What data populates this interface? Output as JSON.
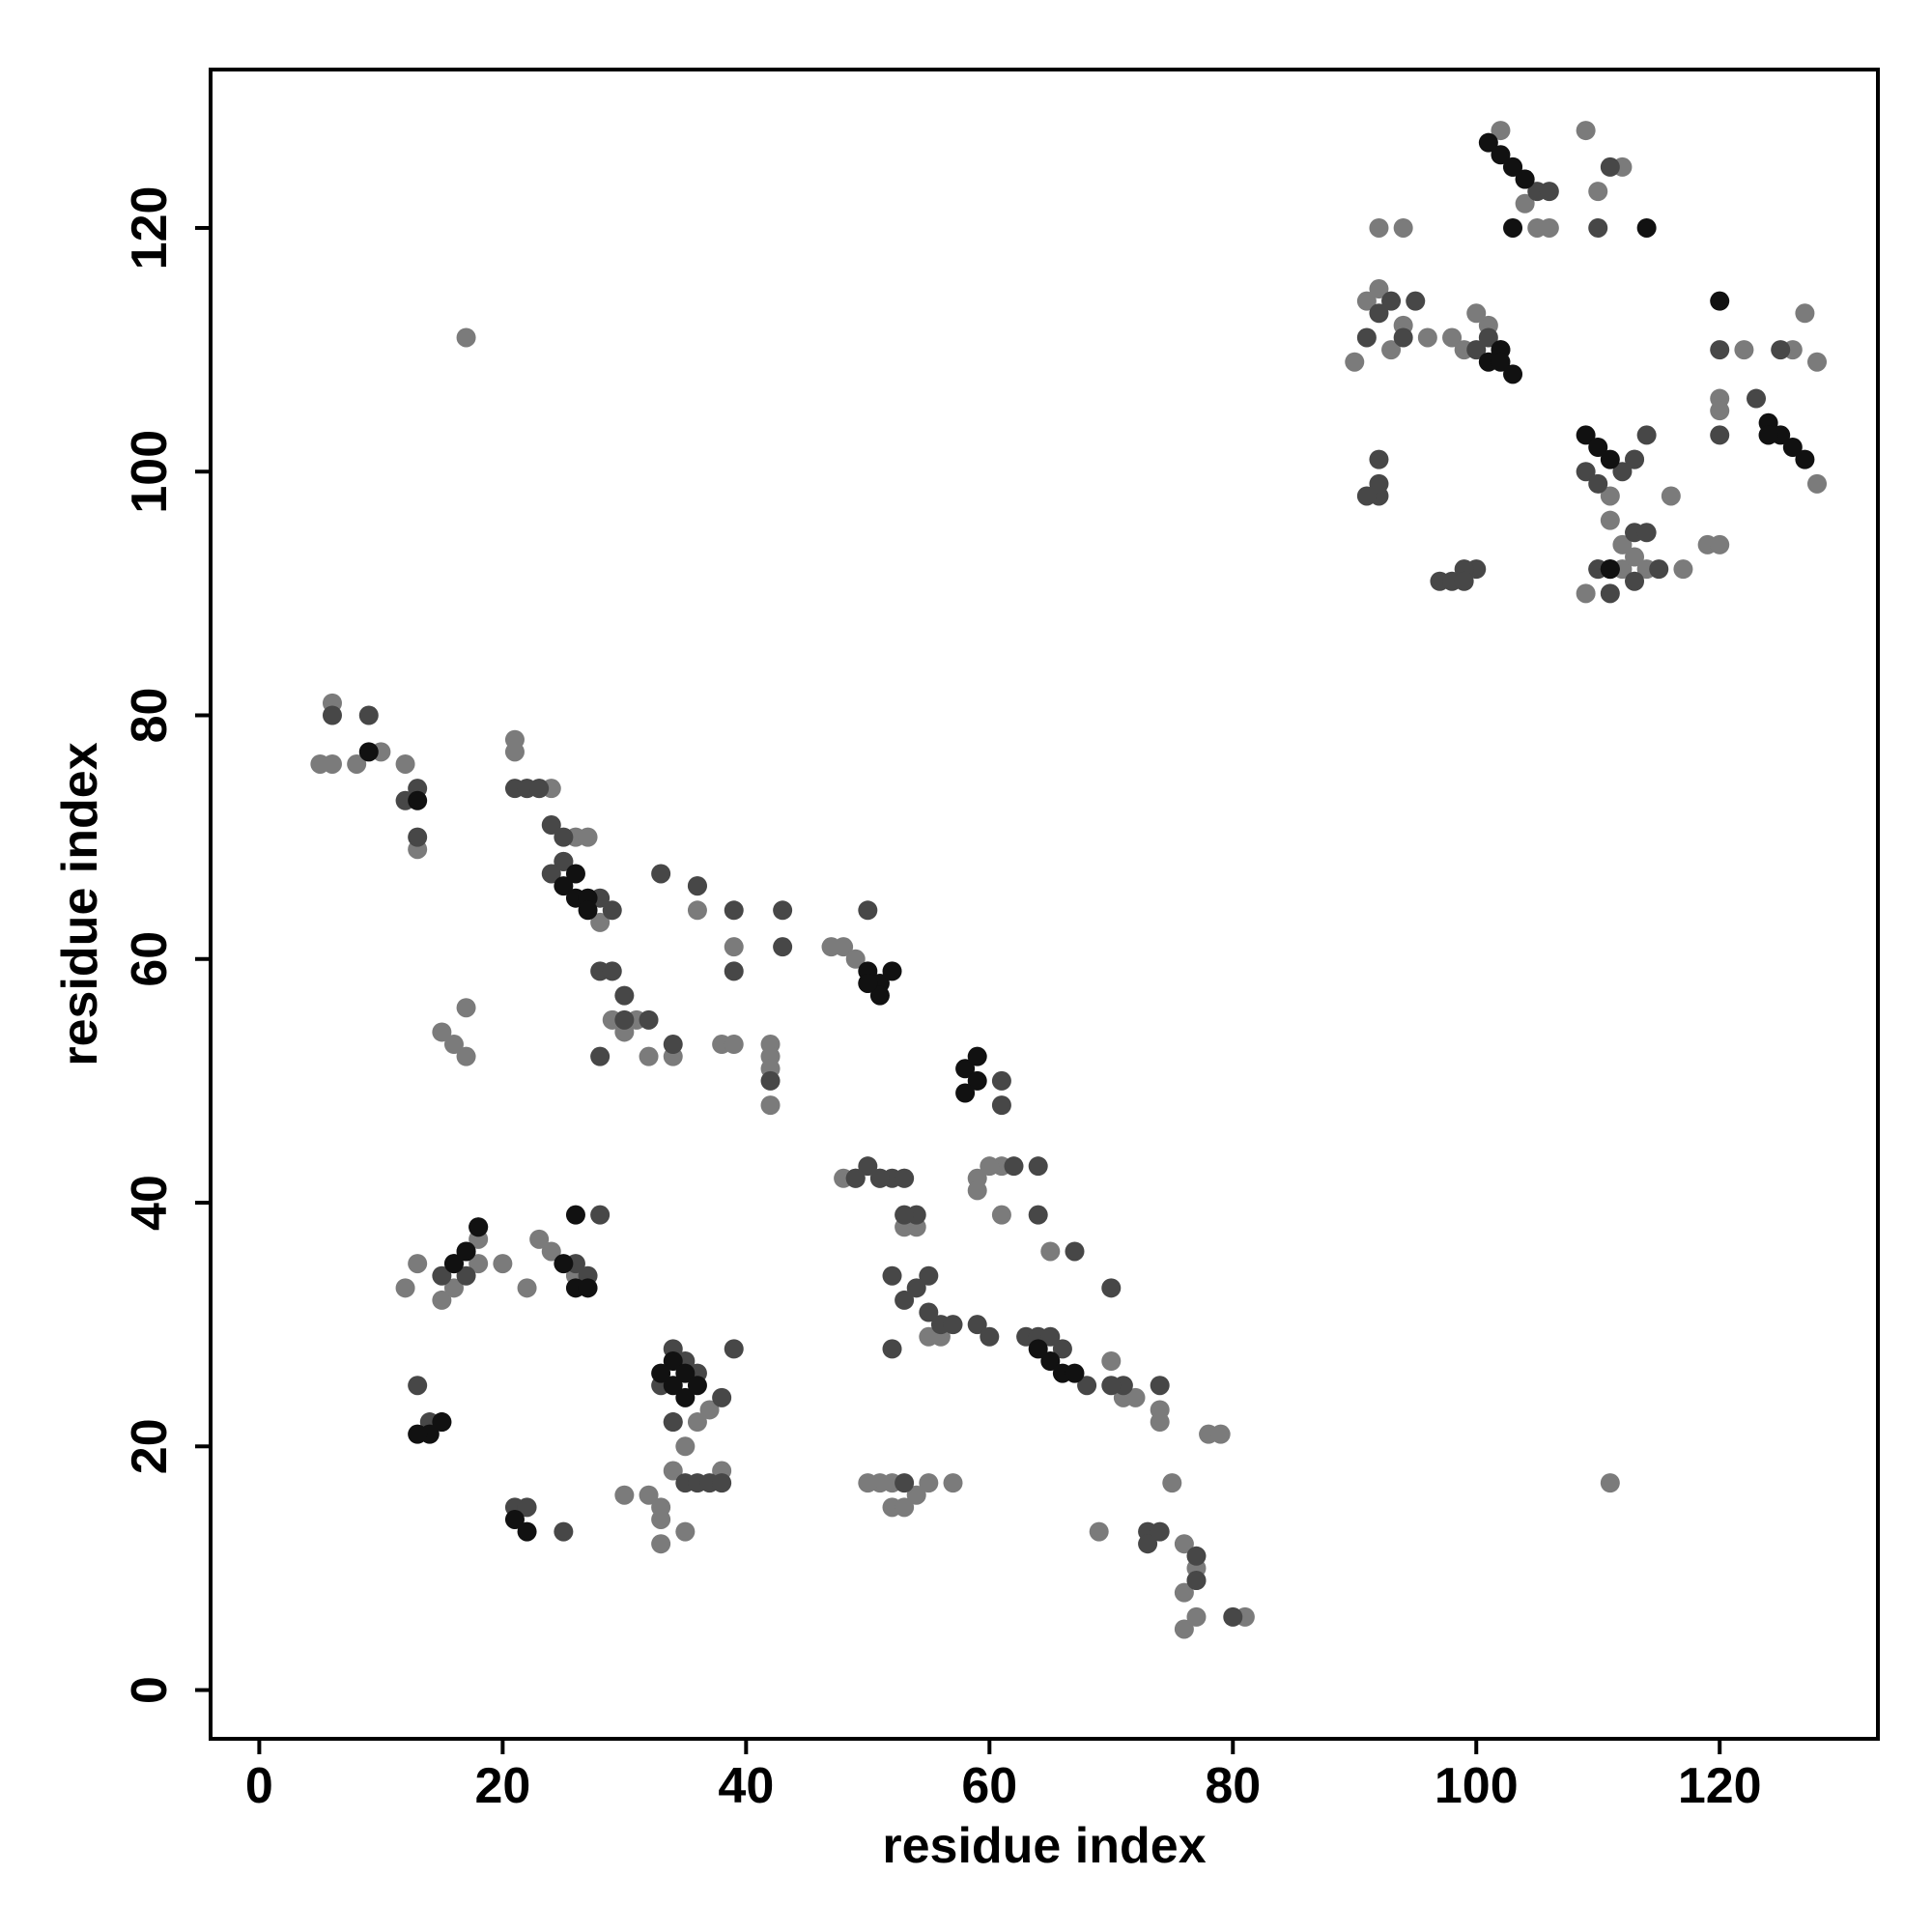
{
  "chart_data": {
    "type": "scatter",
    "title": "",
    "xlabel": "residue index",
    "ylabel": "residue index",
    "xlim": [
      -4,
      133
    ],
    "ylim": [
      -4,
      133
    ],
    "xticks": [
      0,
      20,
      40,
      60,
      80,
      100,
      120
    ],
    "yticks": [
      0,
      20,
      40,
      60,
      80,
      100,
      120
    ],
    "grid": false,
    "legend": "none",
    "point_colors": {
      "dark": "#111111",
      "mid": "#474747",
      "light": "#7b7b7b"
    },
    "series": [
      {
        "shade": "dark",
        "x": [
          9,
          13,
          25,
          26,
          26,
          27,
          27,
          34,
          34,
          35,
          35,
          33,
          36,
          14,
          15,
          13,
          21,
          22,
          16,
          18,
          17,
          25,
          26,
          26,
          27,
          50,
          51,
          51,
          52,
          50,
          58,
          59,
          59,
          58,
          65,
          66,
          67,
          64,
          101,
          102,
          103,
          104,
          102,
          101,
          102,
          103,
          109,
          110,
          111,
          111,
          124,
          125,
          126,
          127,
          124,
          103,
          111,
          114,
          120
        ],
        "y": [
          77,
          73,
          66,
          65,
          67,
          65,
          64,
          27,
          25,
          26,
          24,
          26,
          25,
          21,
          22,
          21,
          14,
          13,
          35,
          38,
          36,
          35,
          33,
          39,
          33,
          59,
          58,
          57,
          59,
          58,
          51,
          50,
          52,
          49,
          27,
          26,
          26,
          28,
          127,
          126,
          125,
          124,
          110,
          109,
          109,
          108,
          103,
          102,
          101,
          92,
          104,
          103,
          102,
          101,
          103,
          120,
          92,
          120,
          114
        ]
      },
      {
        "shade": "mid",
        "x": [
          6,
          9,
          13,
          12,
          13,
          21,
          22,
          23,
          24,
          25,
          25,
          24,
          28,
          29,
          28,
          29,
          30,
          30,
          32,
          34,
          28,
          33,
          36,
          39,
          39,
          43,
          43,
          42,
          50,
          52,
          51,
          49,
          53,
          54,
          53,
          55,
          56,
          57,
          59,
          60,
          61,
          61,
          64,
          64,
          62,
          67,
          70,
          71,
          73,
          74,
          73,
          77,
          77,
          80,
          63,
          64,
          65,
          66,
          68,
          70,
          74,
          34,
          35,
          36,
          38,
          33,
          34,
          35,
          36,
          37,
          13,
          14,
          15,
          17,
          15,
          16,
          17,
          18,
          21,
          22,
          25,
          26,
          27,
          28,
          39,
          38,
          50,
          49,
          51,
          52,
          53,
          54,
          55,
          52,
          53,
          91,
          92,
          93,
          94,
          95,
          92,
          92,
          100,
          101,
          102,
          100,
          99,
          97,
          98,
          99,
          91,
          92,
          103,
          104,
          105,
          106,
          110,
          111,
          113,
          114,
          109,
          110,
          112,
          113,
          114,
          115,
          120,
          120,
          123,
          124,
          125,
          110,
          111,
          113
        ],
        "y": [
          80,
          80,
          74,
          73,
          70,
          74,
          74,
          74,
          71,
          70,
          68,
          67,
          65,
          64,
          59,
          59,
          57,
          55,
          55,
          53,
          52,
          67,
          66,
          64,
          59,
          64,
          61,
          50,
          64,
          42,
          42,
          42,
          42,
          39,
          39,
          34,
          30,
          30,
          30,
          29,
          50,
          48,
          43,
          39,
          43,
          36,
          33,
          25,
          13,
          13,
          12,
          11,
          9,
          6,
          29,
          29,
          29,
          28,
          25,
          25,
          25,
          28,
          27,
          26,
          24,
          25,
          22,
          17,
          17,
          17,
          25,
          22,
          22,
          36,
          34,
          35,
          34,
          38,
          15,
          15,
          13,
          35,
          34,
          39,
          28,
          17,
          43,
          42,
          42,
          34,
          32,
          33,
          31,
          28,
          17,
          111,
          113,
          114,
          111,
          114,
          101,
          98,
          110,
          111,
          110,
          92,
          92,
          91,
          91,
          91,
          98,
          99,
          125,
          124,
          123,
          123,
          120,
          125,
          101,
          103,
          100,
          99,
          100,
          95,
          95,
          92,
          110,
          103,
          106,
          103,
          110,
          92,
          90,
          91
        ]
      },
      {
        "shade": "light",
        "x": [
          5,
          6,
          6,
          8,
          10,
          12,
          13,
          17,
          21,
          21,
          22,
          23,
          24,
          25,
          26,
          27,
          28,
          29,
          30,
          31,
          32,
          34,
          36,
          36,
          38,
          39,
          39,
          42,
          42,
          42,
          42,
          47,
          48,
          49,
          50,
          48,
          53,
          54,
          55,
          56,
          57,
          59,
          59,
          61,
          60,
          61,
          65,
          69,
          70,
          71,
          72,
          74,
          74,
          76,
          76,
          76,
          77,
          77,
          78,
          81,
          79,
          77,
          75,
          15,
          16,
          17,
          17,
          18,
          12,
          13,
          15,
          16,
          18,
          20,
          23,
          24,
          22,
          26,
          32,
          33,
          33,
          34,
          35,
          35,
          36,
          37,
          38,
          34,
          30,
          33,
          53,
          52,
          54,
          52,
          53,
          51,
          50,
          55,
          90,
          91,
          92,
          92,
          93,
          94,
          94,
          96,
          98,
          99,
          101,
          100,
          102,
          104,
          105,
          106,
          109,
          110,
          112,
          113,
          116,
          117,
          119,
          120,
          120,
          120,
          122,
          126,
          127,
          128,
          128,
          111,
          109,
          110,
          111,
          112,
          114,
          112,
          113,
          111
        ],
        "y": [
          76,
          76,
          81,
          76,
          77,
          76,
          69,
          111,
          78,
          77,
          74,
          74,
          74,
          68,
          70,
          70,
          63,
          55,
          54,
          55,
          52,
          52,
          66,
          64,
          53,
          61,
          53,
          53,
          52,
          51,
          48,
          61,
          61,
          60,
          58,
          42,
          42,
          38,
          29,
          29,
          17,
          42,
          41,
          43,
          43,
          39,
          36,
          13,
          27,
          24,
          24,
          23,
          22,
          12,
          8,
          5,
          6,
          10,
          21,
          6,
          21,
          9,
          17,
          54,
          53,
          56,
          52,
          37,
          33,
          35,
          32,
          33,
          35,
          35,
          37,
          36,
          33,
          34,
          16,
          12,
          15,
          22,
          20,
          13,
          22,
          23,
          18,
          18,
          16,
          14,
          38,
          17,
          16,
          15,
          15,
          17,
          17,
          17,
          109,
          114,
          115,
          120,
          110,
          120,
          112,
          111,
          111,
          110,
          112,
          113,
          128,
          122,
          120,
          120,
          128,
          123,
          125,
          101,
          98,
          92,
          94,
          94,
          106,
          105,
          110,
          110,
          113,
          99,
          109,
          17,
          90,
          92,
          96,
          94,
          92,
          92,
          93,
          98
        ]
      }
    ]
  }
}
